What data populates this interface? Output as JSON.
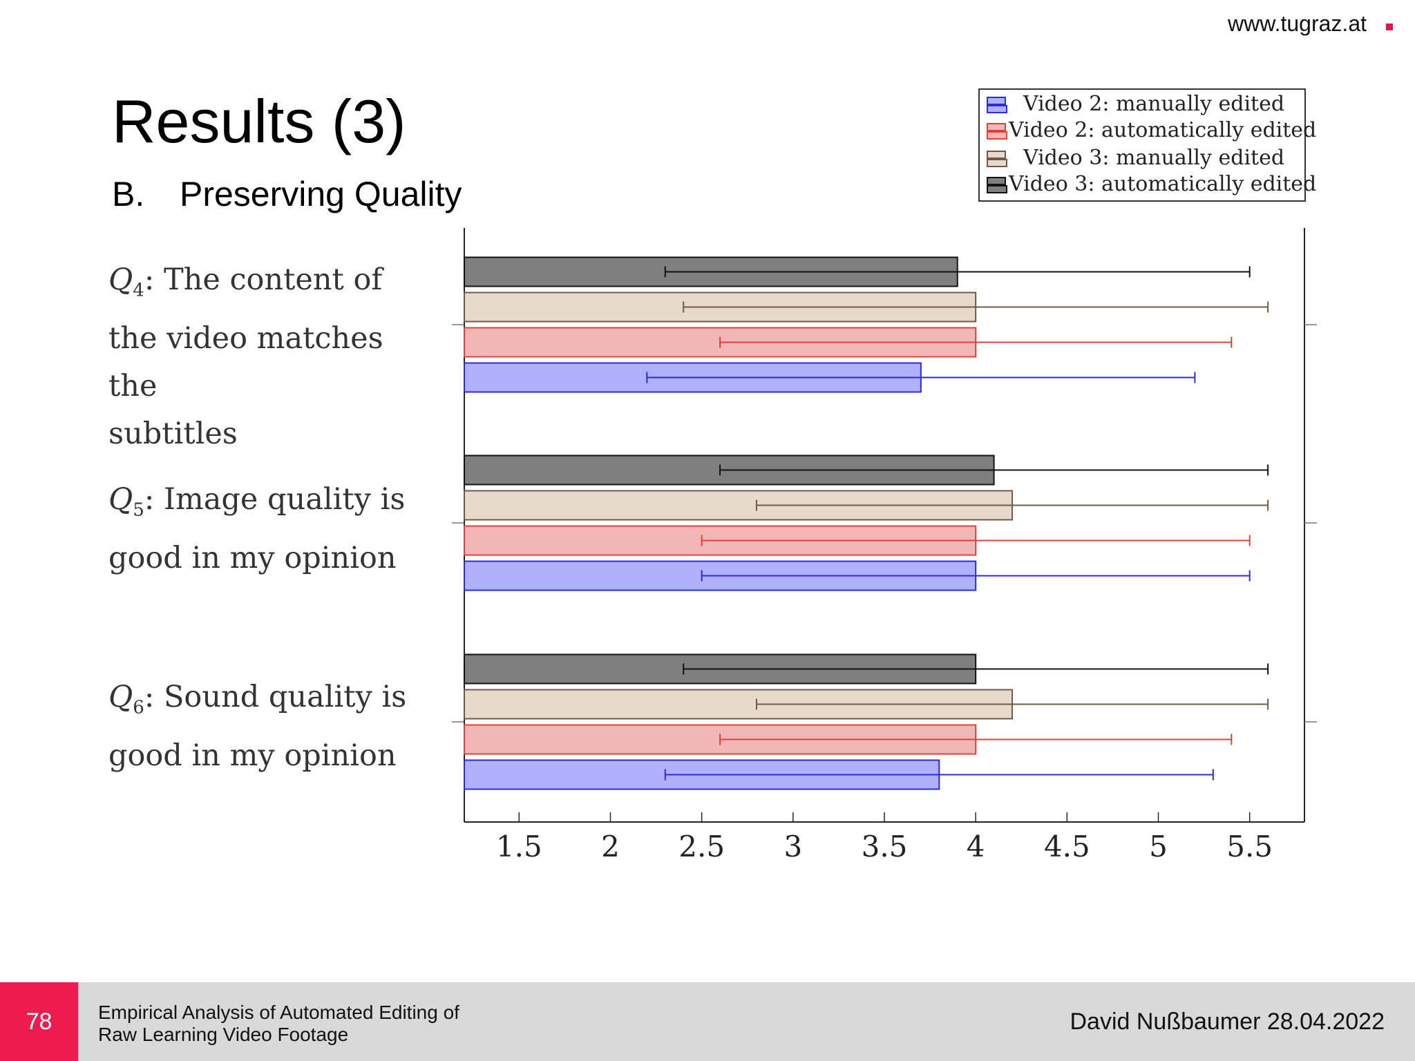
{
  "header": {
    "url": "www.tugraz.at"
  },
  "slide": {
    "title": "Results (3)",
    "subtitle_num": "B.",
    "subtitle": "Preserving Quality"
  },
  "questions": [
    {
      "label": "Q",
      "sub": "4",
      "text_line1": ": The content of",
      "text_line2": "the video matches the",
      "text_line3": "subtitles"
    },
    {
      "label": "Q",
      "sub": "5",
      "text_line1": ": Image quality is",
      "text_line2": "good in my opinion"
    },
    {
      "label": "Q",
      "sub": "6",
      "text_line1": ": Sound quality is",
      "text_line2": "good in my opinion"
    }
  ],
  "footer": {
    "page": "78",
    "talk_line1": "Empirical Analysis of Automated Editing of",
    "talk_line2": "Raw Learning Video Footage",
    "author_date": "David Nußbaumer   28.04.2022"
  },
  "chart_data": {
    "type": "bar",
    "orientation": "horizontal",
    "categories": [
      "Q4",
      "Q5",
      "Q6"
    ],
    "xlim": [
      1.2,
      5.8
    ],
    "xticks": [
      "1.5",
      "2",
      "2.5",
      "3",
      "3.5",
      "4",
      "4.5",
      "5",
      "5.5"
    ],
    "xtick_values": [
      1.5,
      2,
      2.5,
      3,
      3.5,
      4,
      4.5,
      5,
      5.5
    ],
    "legend_position": "top-right",
    "series": [
      {
        "name": "Video 2: manually edited",
        "fill": "#b1b1fb",
        "stroke": "#2a2adf",
        "values": [
          3.7,
          4.0,
          3.8
        ],
        "err_low": [
          2.2,
          2.5,
          2.3
        ],
        "err_high": [
          5.2,
          5.5,
          5.3
        ]
      },
      {
        "name": "Video 2: automatically edited",
        "fill": "#f3b6b6",
        "stroke": "#e0413f",
        "values": [
          4.0,
          4.0,
          4.0
        ],
        "err_low": [
          2.6,
          2.5,
          2.6
        ],
        "err_high": [
          5.4,
          5.5,
          5.4
        ]
      },
      {
        "name": "Video 3: manually edited",
        "fill": "#e8dacb",
        "stroke": "#6d5a4a",
        "values": [
          4.0,
          4.2,
          4.2
        ],
        "err_low": [
          2.4,
          2.8,
          2.8
        ],
        "err_high": [
          5.6,
          5.6,
          5.6
        ]
      },
      {
        "name": "Video 3: automatically edited",
        "fill": "#7f7f7f",
        "stroke": "#111111",
        "values": [
          3.9,
          4.1,
          4.0
        ],
        "err_low": [
          2.3,
          2.6,
          2.4
        ],
        "err_high": [
          5.5,
          5.6,
          5.6
        ]
      }
    ]
  }
}
